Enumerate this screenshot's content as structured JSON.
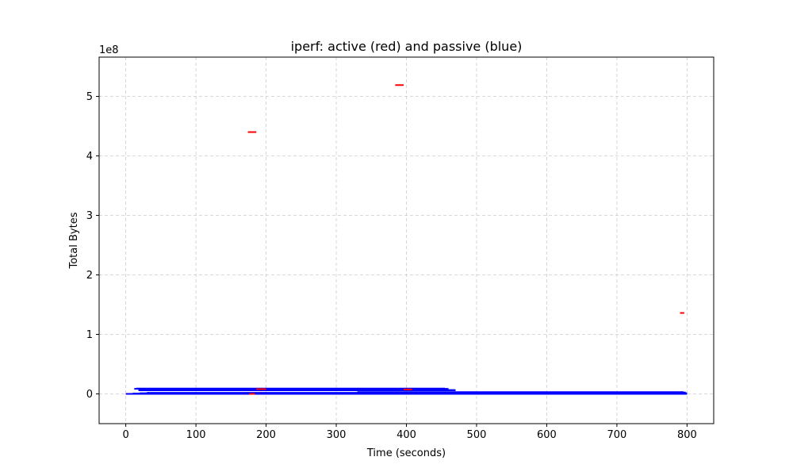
{
  "chart_data": {
    "type": "line",
    "title": "iperf: active (red) and passive (blue)",
    "xlabel": "Time (seconds)",
    "ylabel": "Total Bytes",
    "y_scale_label": "1e8",
    "y_scale": 100000000,
    "xlim": [
      -38,
      838
    ],
    "ylim": [
      -50000000,
      566000000
    ],
    "x_ticks": [
      0,
      100,
      200,
      300,
      400,
      500,
      600,
      700,
      800
    ],
    "y_ticks": [
      0,
      100000000,
      200000000,
      300000000,
      400000000,
      500000000
    ],
    "y_tick_labels": [
      "0",
      "1",
      "2",
      "3",
      "4",
      "5"
    ],
    "grid": true,
    "grid_style": "dashed",
    "colors": {
      "active": "#ff0000",
      "passive": "#0000ff",
      "grid": "#cccccc"
    },
    "series": [
      {
        "color": "#0000ff",
        "segments": [
          [
            [
              0,
              0
            ],
            [
              800,
              0
            ]
          ],
          [
            [
              10,
              600000
            ],
            [
              800,
              600000
            ]
          ],
          [
            [
              20,
              1200000
            ],
            [
              800,
              1200000
            ]
          ],
          [
            [
              30,
              1800000
            ],
            [
              798,
              1800000
            ]
          ],
          [
            [
              330,
              2400000
            ],
            [
              798,
              2400000
            ]
          ],
          [
            [
              330,
              3000000
            ],
            [
              795,
              3000000
            ]
          ],
          [
            [
              18,
              6000000
            ],
            [
              470,
              6000000
            ]
          ],
          [
            [
              25,
              6500000
            ],
            [
              470,
              6500000
            ]
          ],
          [
            [
              12,
              8500000
            ],
            [
              460,
              8500000
            ]
          ],
          [
            [
              15,
              9000000
            ],
            [
              455,
              9000000
            ]
          ]
        ]
      },
      {
        "color": "#ff0000",
        "segments": [
          [
            [
              174,
              440000000
            ],
            [
              186,
              440000000
            ]
          ],
          [
            [
              384,
              519000000
            ],
            [
              396,
              519000000
            ]
          ],
          [
            [
              790,
              136000000
            ],
            [
              796,
              136000000
            ]
          ],
          [
            [
              186,
              8000000
            ],
            [
              200,
              8000000
            ]
          ],
          [
            [
              396,
              7500000
            ],
            [
              408,
              7500000
            ]
          ],
          [
            [
              176,
              0
            ],
            [
              184,
              0
            ]
          ]
        ]
      }
    ]
  }
}
